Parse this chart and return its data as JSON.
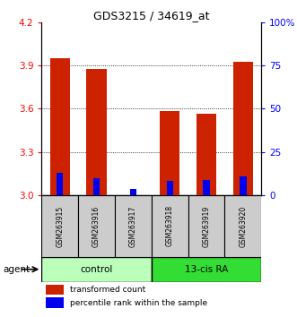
{
  "title": "GDS3215 / 34619_at",
  "samples": [
    "GSM263915",
    "GSM263916",
    "GSM263917",
    "GSM263918",
    "GSM263919",
    "GSM263920"
  ],
  "transformed_counts": [
    3.95,
    3.875,
    3.0,
    3.585,
    3.565,
    3.925
  ],
  "percentile_ranks": [
    13.0,
    10.0,
    3.5,
    8.5,
    9.0,
    11.0
  ],
  "ymin": 3.0,
  "ymax": 4.2,
  "y_ticks_left": [
    3.0,
    3.3,
    3.6,
    3.9,
    4.2
  ],
  "y_ticks_right_vals": [
    0,
    25,
    50,
    75,
    100
  ],
  "y_ticks_right_labels": [
    "0",
    "25",
    "50",
    "75",
    "100%"
  ],
  "bar_color": "#cc2200",
  "percentile_color": "#0000ee",
  "control_bg": "#bbffbb",
  "ra_bg": "#33dd33",
  "sample_bg": "#cccccc",
  "agent_label": "agent",
  "control_label": "control",
  "ra_label": "13-cis RA",
  "legend1": "transformed count",
  "legend2": "percentile rank within the sample",
  "bar_width": 0.55,
  "percentile_bar_width": 0.18
}
